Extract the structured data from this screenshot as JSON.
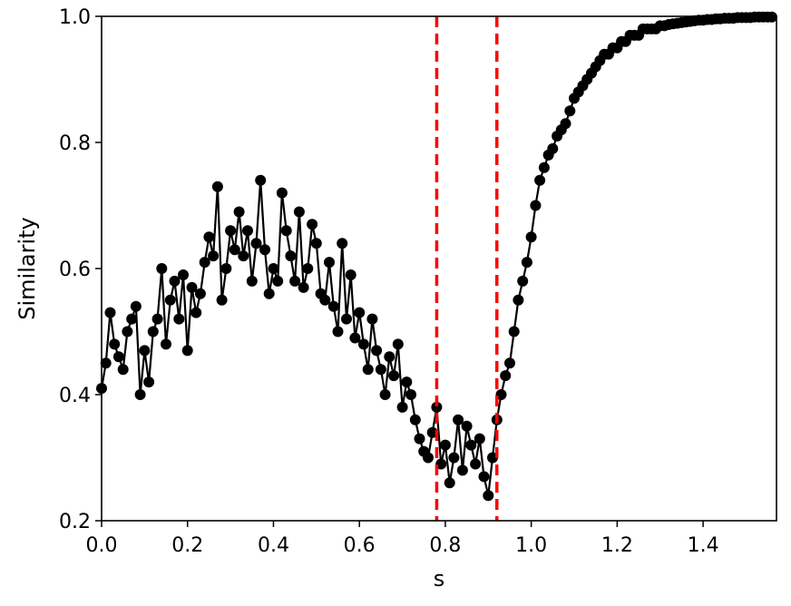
{
  "chart_data": {
    "type": "line",
    "title": "",
    "xlabel": "s",
    "ylabel": "Similarity",
    "xlim": [
      0.0,
      1.5708
    ],
    "ylim": [
      0.2,
      1.0
    ],
    "x_ticks": [
      "0.0",
      "0.2",
      "0.4",
      "0.6",
      "0.8",
      "1.0",
      "1.2",
      "1.4"
    ],
    "y_ticks": [
      "0.2",
      "0.4",
      "0.6",
      "0.8",
      "1.0"
    ],
    "grid": false,
    "marker": "circle",
    "colors": {
      "series": "#000000",
      "vlines": "#ff0000"
    },
    "vlines": [
      0.78,
      0.92
    ],
    "series": [
      {
        "x": [
          0.0,
          0.01,
          0.02,
          0.03,
          0.04,
          0.05,
          0.06,
          0.07,
          0.08,
          0.09,
          0.1,
          0.11,
          0.12,
          0.13,
          0.14,
          0.15,
          0.16,
          0.17,
          0.18,
          0.19,
          0.2,
          0.21,
          0.22,
          0.23,
          0.24,
          0.25,
          0.26,
          0.27,
          0.28,
          0.29,
          0.3,
          0.31,
          0.32,
          0.33,
          0.34,
          0.35,
          0.36,
          0.37,
          0.38,
          0.39,
          0.4,
          0.41,
          0.42,
          0.43,
          0.44,
          0.45,
          0.46,
          0.47,
          0.48,
          0.49,
          0.5,
          0.51,
          0.52,
          0.53,
          0.54,
          0.55,
          0.56,
          0.57,
          0.58,
          0.59,
          0.6,
          0.61,
          0.62,
          0.63,
          0.64,
          0.65,
          0.66,
          0.67,
          0.68,
          0.69,
          0.7,
          0.71,
          0.72,
          0.73,
          0.74,
          0.75,
          0.76,
          0.77,
          0.78,
          0.79,
          0.8,
          0.81,
          0.82,
          0.83,
          0.84,
          0.85,
          0.86,
          0.87,
          0.88,
          0.89,
          0.9,
          0.91,
          0.92,
          0.93,
          0.94,
          0.95,
          0.96,
          0.97,
          0.98,
          0.99,
          1.0,
          1.01,
          1.02,
          1.03,
          1.04,
          1.05,
          1.06,
          1.07,
          1.08,
          1.09,
          1.1,
          1.11,
          1.12,
          1.13,
          1.14,
          1.15,
          1.16,
          1.17,
          1.18,
          1.19,
          1.2,
          1.21,
          1.22,
          1.23,
          1.24,
          1.25,
          1.26,
          1.27,
          1.28,
          1.29,
          1.3,
          1.31,
          1.32,
          1.33,
          1.34,
          1.35,
          1.36,
          1.37,
          1.38,
          1.39,
          1.4,
          1.41,
          1.42,
          1.43,
          1.44,
          1.45,
          1.46,
          1.47,
          1.48,
          1.49,
          1.5,
          1.51,
          1.52,
          1.53,
          1.54,
          1.55,
          1.56
        ],
        "y": [
          0.41,
          0.45,
          0.53,
          0.48,
          0.46,
          0.44,
          0.5,
          0.52,
          0.54,
          0.4,
          0.47,
          0.42,
          0.5,
          0.52,
          0.6,
          0.48,
          0.55,
          0.58,
          0.52,
          0.59,
          0.47,
          0.57,
          0.53,
          0.56,
          0.61,
          0.65,
          0.62,
          0.73,
          0.55,
          0.6,
          0.66,
          0.63,
          0.69,
          0.62,
          0.66,
          0.58,
          0.64,
          0.74,
          0.63,
          0.56,
          0.6,
          0.58,
          0.72,
          0.66,
          0.62,
          0.58,
          0.69,
          0.57,
          0.6,
          0.67,
          0.64,
          0.56,
          0.55,
          0.61,
          0.54,
          0.5,
          0.64,
          0.52,
          0.59,
          0.49,
          0.53,
          0.48,
          0.44,
          0.52,
          0.47,
          0.44,
          0.4,
          0.46,
          0.43,
          0.48,
          0.38,
          0.42,
          0.4,
          0.36,
          0.33,
          0.31,
          0.3,
          0.34,
          0.38,
          0.29,
          0.32,
          0.26,
          0.3,
          0.36,
          0.28,
          0.35,
          0.32,
          0.29,
          0.33,
          0.27,
          0.24,
          0.3,
          0.36,
          0.4,
          0.43,
          0.45,
          0.5,
          0.55,
          0.58,
          0.61,
          0.65,
          0.7,
          0.74,
          0.76,
          0.78,
          0.79,
          0.81,
          0.82,
          0.83,
          0.85,
          0.87,
          0.88,
          0.89,
          0.9,
          0.91,
          0.92,
          0.93,
          0.94,
          0.94,
          0.95,
          0.95,
          0.96,
          0.96,
          0.97,
          0.97,
          0.97,
          0.98,
          0.98,
          0.98,
          0.98,
          0.985,
          0.985,
          0.987,
          0.988,
          0.989,
          0.99,
          0.991,
          0.992,
          0.993,
          0.994,
          0.994,
          0.995,
          0.995,
          0.996,
          0.996,
          0.997,
          0.997,
          0.997,
          0.998,
          0.998,
          0.998,
          0.998,
          0.999,
          0.999,
          0.999,
          0.999,
          0.999
        ]
      }
    ]
  }
}
